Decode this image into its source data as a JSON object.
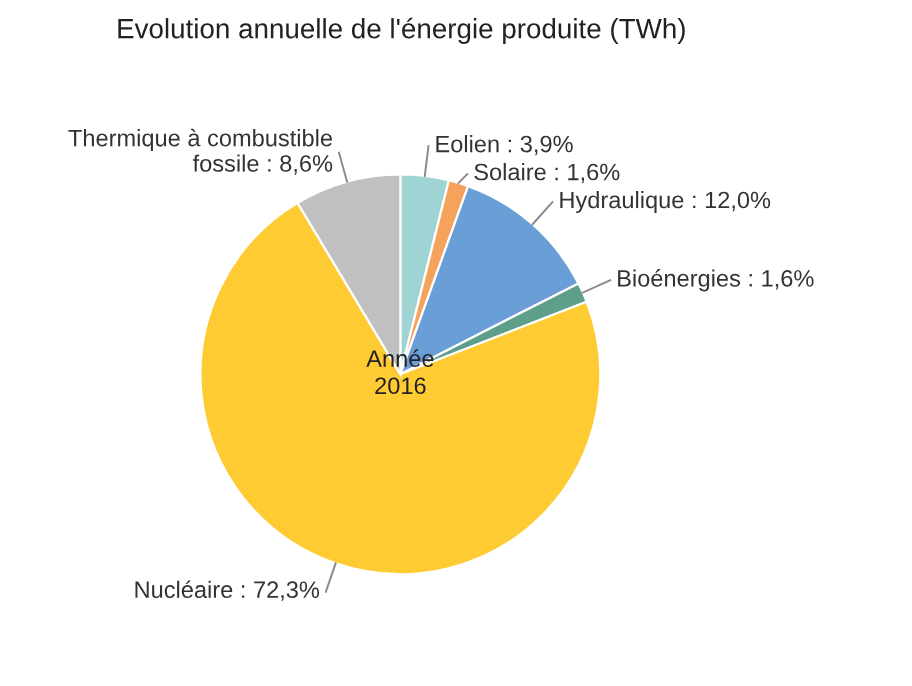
{
  "chart_data": {
    "type": "pie",
    "title": "Evolution annuelle de l'énergie produite (TWh)",
    "categories": [
      "Eolien",
      "Solaire",
      "Hydraulique",
      "Bioénergies",
      "Nucléaire",
      "Thermique à combustible\nfossile"
    ],
    "values": [
      3.9,
      1.6,
      12.0,
      1.6,
      72.3,
      8.6
    ],
    "value_labels": [
      "3,9%",
      "1,6%",
      "12,0%",
      "1,6%",
      "72,3%",
      "8,6%"
    ],
    "colors": [
      "#9fd3d4",
      "#f5a25d",
      "#6a9ed6",
      "#5e9f8c",
      "#ffcb33",
      "#c0c0c0"
    ],
    "annotations": [
      "Année\n2016"
    ],
    "legend": false
  }
}
